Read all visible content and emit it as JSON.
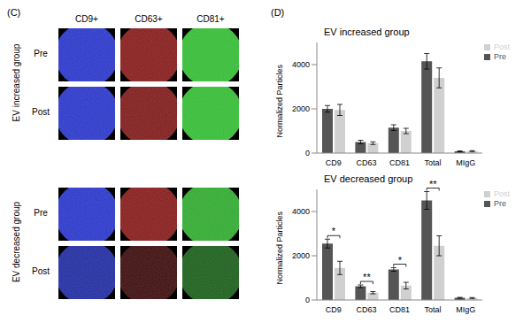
{
  "panel_c": {
    "label": "(C)",
    "columns": [
      {
        "label": "CD9+",
        "color": "#2b38d0"
      },
      {
        "label": "CD63+",
        "color": "#8a1c1c"
      },
      {
        "label": "CD81+",
        "color": "#36c236"
      }
    ],
    "groups": [
      {
        "label": "EV increased group",
        "rows": [
          "Pre",
          "Post"
        ]
      },
      {
        "label": "EV decreased group",
        "rows": [
          "Pre",
          "Post"
        ]
      }
    ]
  },
  "panel_d": {
    "label": "(D)"
  },
  "chart_data": [
    {
      "type": "bar",
      "title": "EV increased group",
      "y_label": "Normalized Particles",
      "categories": [
        "CD9",
        "CD63",
        "CD81",
        "Total",
        "MIgG"
      ],
      "series": [
        {
          "name": "Pre",
          "color": "#555555",
          "values": [
            2000,
            500,
            1150,
            4150,
            80
          ],
          "errors": [
            150,
            80,
            130,
            350,
            20
          ]
        },
        {
          "name": "Post",
          "color": "#d0d0d0",
          "values": [
            1950,
            450,
            1000,
            3400,
            90
          ],
          "errors": [
            250,
            60,
            120,
            450,
            20
          ]
        }
      ],
      "ylim": [
        0,
        5000
      ],
      "yticks": [
        0,
        2000,
        4000
      ],
      "legend": "top-right",
      "significance": []
    },
    {
      "type": "bar",
      "title": "EV decreased group",
      "y_label": "Normalized Particles",
      "categories": [
        "CD9",
        "CD63",
        "CD81",
        "Total",
        "MIgG"
      ],
      "series": [
        {
          "name": "Pre",
          "color": "#555555",
          "values": [
            2550,
            620,
            1380,
            4500,
            100
          ],
          "errors": [
            200,
            60,
            80,
            400,
            20
          ]
        },
        {
          "name": "Post",
          "color": "#d0d0d0",
          "values": [
            1450,
            330,
            650,
            2450,
            90
          ],
          "errors": [
            300,
            50,
            150,
            450,
            20
          ]
        }
      ],
      "ylim": [
        0,
        5000
      ],
      "yticks": [
        0,
        2000,
        4000
      ],
      "legend": "top-right",
      "significance": [
        {
          "category": "CD9",
          "text": "*"
        },
        {
          "category": "CD63",
          "text": "**"
        },
        {
          "category": "CD81",
          "text": "*"
        },
        {
          "category": "Total",
          "text": "**"
        }
      ]
    }
  ]
}
